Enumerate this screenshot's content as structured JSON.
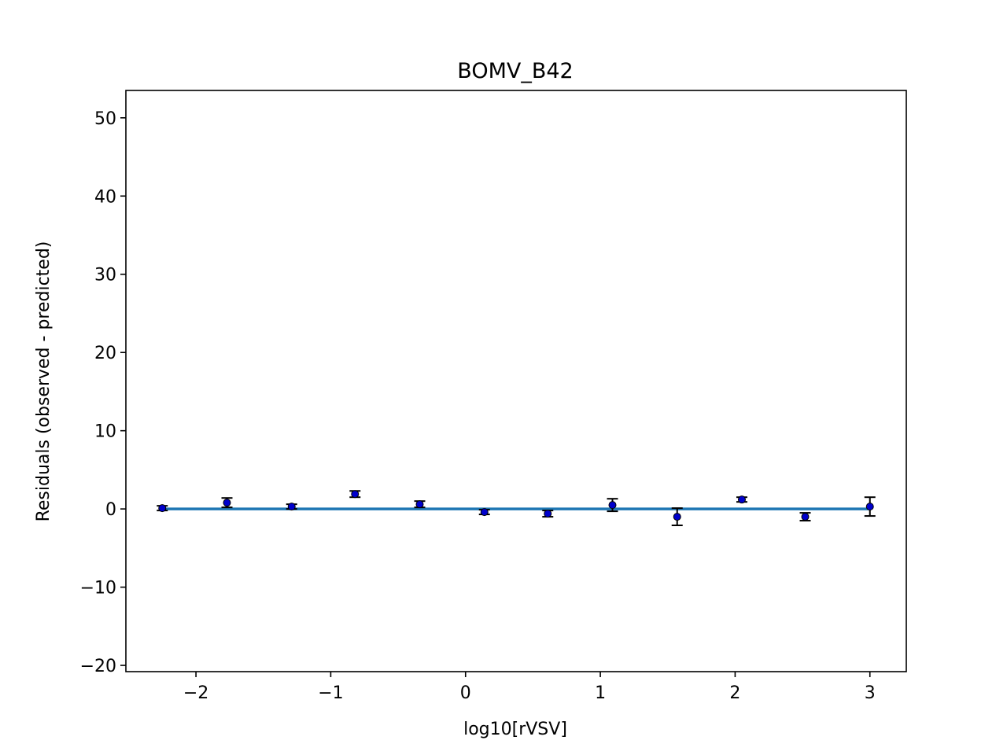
{
  "chart_data": {
    "type": "scatter",
    "title": "BOMV_B42",
    "xlabel": "log10[rVSV]",
    "ylabel": "Residuals (observed - predicted)",
    "xlim": [
      -2.52,
      3.27
    ],
    "ylim": [
      -20.8,
      53.5
    ],
    "xticks": [
      -2,
      -1,
      0,
      1,
      2,
      3
    ],
    "xtick_labels": [
      "−2",
      "−1",
      "0",
      "1",
      "2",
      "3"
    ],
    "yticks": [
      -20,
      -10,
      0,
      10,
      20,
      30,
      40,
      50
    ],
    "ytick_labels": [
      "−20",
      "−10",
      "0",
      "10",
      "20",
      "30",
      "40",
      "50"
    ],
    "grid": false,
    "zero_line": {
      "y": 0,
      "x_from": -2.25,
      "x_to": 3.0,
      "color": "#1f77b4"
    },
    "series": [
      {
        "marker_color": "#0000cc",
        "x": [
          -2.25,
          -1.77,
          -1.29,
          -0.82,
          -0.34,
          0.14,
          0.61,
          1.09,
          1.57,
          2.05,
          2.52,
          3.0
        ],
        "y": [
          0.1,
          0.8,
          0.3,
          1.9,
          0.6,
          -0.4,
          -0.6,
          0.5,
          -1.0,
          1.2,
          -1.0,
          0.3
        ],
        "yerr": [
          0.3,
          0.6,
          0.3,
          0.4,
          0.4,
          0.3,
          0.4,
          0.8,
          1.1,
          0.3,
          0.5,
          1.2
        ]
      }
    ]
  }
}
